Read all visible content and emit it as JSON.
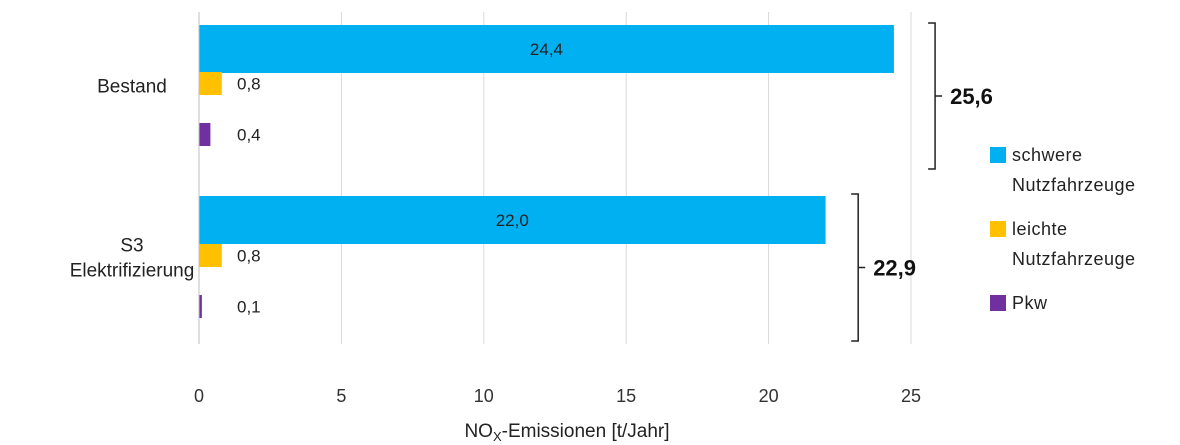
{
  "chart_data": {
    "type": "bar",
    "orientation": "horizontal",
    "categories": [
      [
        "Bestand"
      ],
      [
        "S3",
        "Elektrifizierung"
      ]
    ],
    "series": [
      {
        "name": "schwere Nutzfahrzeuge",
        "values": [
          24.4,
          22.0
        ],
        "labels": [
          "24,4",
          "22,0"
        ],
        "color": "#00B0F0"
      },
      {
        "name": "leichte Nutzfahrzeuge",
        "values": [
          0.8,
          0.8
        ],
        "labels": [
          "0,8",
          "0,8"
        ],
        "color": "#FFC000"
      },
      {
        "name": "Pkw",
        "values": [
          0.4,
          0.1
        ],
        "labels": [
          "0,4",
          "0,1"
        ],
        "color": "#7030A0"
      }
    ],
    "totals": [
      "25,6",
      "22,9"
    ],
    "xlabel_main": "NO",
    "xlabel_sub": "X",
    "xlabel_rest": "-Emissionen [t/Jahr]",
    "xlim": [
      0,
      25
    ],
    "xticks": [
      0,
      5,
      10,
      15,
      20,
      25
    ],
    "grid": true,
    "legend_position": "right"
  }
}
